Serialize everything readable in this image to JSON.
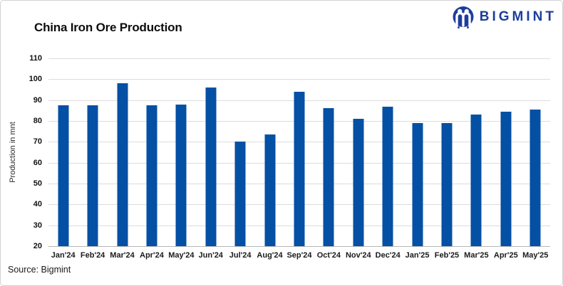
{
  "header": {
    "title": "China Iron Ore Production"
  },
  "brand": {
    "name": "BIGMINT",
    "color": "#1e3d9c"
  },
  "chart_data": {
    "type": "bar",
    "title": "China Iron Ore Production",
    "xlabel": "",
    "ylabel": "Production in mnt",
    "categories": [
      "Jan'24",
      "Feb'24",
      "Mar'24",
      "Apr'24",
      "May'24",
      "Jun'24",
      "Jul'24",
      "Aug'24",
      "Sep'24",
      "Oct'24",
      "Nov'24",
      "Dec'24",
      "Jan'25",
      "Feb'25",
      "Mar'25",
      "Apr'25",
      "May'25"
    ],
    "values": [
      87.5,
      87.5,
      98,
      87.5,
      88,
      96,
      70,
      73.5,
      94,
      86,
      81,
      87,
      79,
      79,
      83,
      84.5,
      85.5
    ],
    "ylim": [
      20,
      110
    ],
    "ytick_step": 10,
    "yticks": [
      110,
      100,
      90,
      80,
      70,
      60,
      50,
      40,
      30,
      20
    ],
    "grid": true,
    "legend": "none",
    "bar_color": "#0450a4",
    "gridline_color": "#dcdcdc"
  },
  "footer": {
    "source": "Source: Bigmint"
  }
}
